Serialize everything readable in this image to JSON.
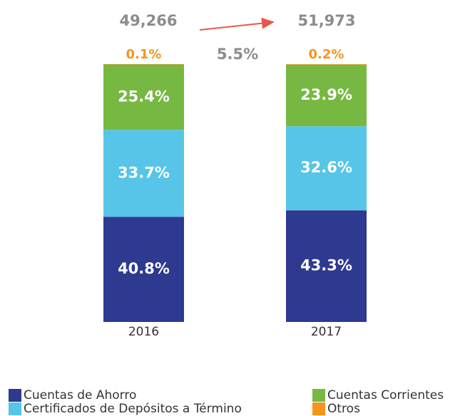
{
  "chart_data": {
    "type": "stacked_bar",
    "categories": [
      "2016",
      "2017"
    ],
    "series": [
      {
        "name": "Cuentas de Ahorro",
        "color": "#2e3a8f",
        "values": [
          40.8,
          43.3
        ],
        "value_labels": [
          "40.8%",
          "43.3%"
        ]
      },
      {
        "name": "Certificados de Depósitos a Término",
        "color": "#56c5e8",
        "values": [
          33.7,
          32.6
        ],
        "value_labels": [
          "33.7%",
          "32.6%"
        ]
      },
      {
        "name": "Cuentas Corrientes",
        "color": "#76b842",
        "values": [
          25.4,
          23.9
        ],
        "value_labels": [
          "25.4%",
          "23.9%"
        ]
      },
      {
        "name": "Otros",
        "color": "#f7941d",
        "values": [
          0.1,
          0.2
        ],
        "value_labels": [
          "0.1%",
          "0.2%"
        ]
      }
    ],
    "totals": [
      {
        "value": 49266,
        "label": "49,266"
      },
      {
        "value": 51973,
        "label": "51,973"
      }
    ],
    "growth": {
      "value": 5.5,
      "label": "5.5%"
    },
    "legend": "bottom"
  }
}
